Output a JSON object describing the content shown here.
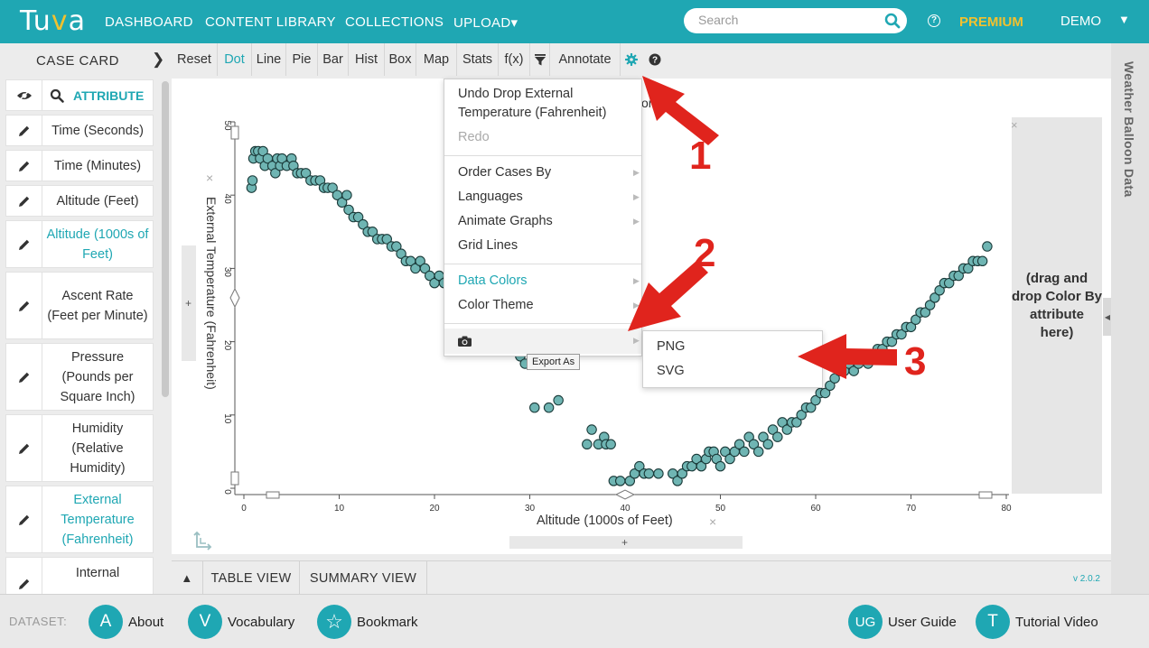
{
  "header": {
    "logo": "Tuva",
    "nav": [
      "DASHBOARD",
      "CONTENT LIBRARY",
      "COLLECTIONS",
      "UPLOAD▾"
    ],
    "search_placeholder": "Search",
    "help_icon": "?",
    "premium": "PREMIUM",
    "user": "DEMO",
    "user_caret": "▼"
  },
  "sidebar": {
    "title": "CASE CARD",
    "chevron": "›",
    "attribute_header": "ATTRIBUTE",
    "items": [
      {
        "label": "Time (Seconds)",
        "selected": false
      },
      {
        "label": "Time (Minutes)",
        "selected": false
      },
      {
        "label": "Altitude (Feet)",
        "selected": false
      },
      {
        "label": "Altitude (1000s of Feet)",
        "selected": true
      },
      {
        "label": "Ascent Rate (Feet per Minute)",
        "selected": false
      },
      {
        "label": "Pressure (Pounds per Square Inch)",
        "selected": false
      },
      {
        "label": "Humidity (Relative Humidity)",
        "selected": false
      },
      {
        "label": "External Temperature (Fahrenheit)",
        "selected": true
      },
      {
        "label": "Internal",
        "selected": false
      }
    ]
  },
  "toolbar": {
    "items": [
      "Reset",
      "Dot",
      "Line",
      "Pie",
      "Bar",
      "Hist",
      "Box",
      "Map",
      "Stats",
      "f(x)",
      "",
      "Annotate",
      "",
      ""
    ],
    "active": "Dot"
  },
  "graph": {
    "title_partial": "ors",
    "x_label": "Altitude (1000s of Feet)",
    "y_label": "External Temperature (Fahrenheit)",
    "color_drop": "(drag and drop Color By attribute here)",
    "close": "×",
    "plus": "+"
  },
  "chart_data": {
    "type": "scatter",
    "xlabel": "Altitude (1000s of Feet)",
    "ylabel": "External Temperature (Fahrenheit)",
    "xlim": [
      0,
      80
    ],
    "ylim": [
      0,
      50
    ],
    "xticks": [
      0,
      10,
      20,
      30,
      40,
      50,
      60,
      70,
      80
    ],
    "yticks": [
      0,
      10,
      20,
      30,
      40,
      50
    ],
    "point_color": "#6fb5b3",
    "points": [
      [
        0.8,
        41
      ],
      [
        0.9,
        42
      ],
      [
        1,
        45
      ],
      [
        1.2,
        46
      ],
      [
        1.5,
        46
      ],
      [
        1.7,
        45
      ],
      [
        2,
        46
      ],
      [
        2.2,
        44
      ],
      [
        2.5,
        45
      ],
      [
        3,
        44
      ],
      [
        3.3,
        43
      ],
      [
        3.5,
        45
      ],
      [
        3.8,
        44
      ],
      [
        4,
        45
      ],
      [
        4.5,
        44
      ],
      [
        5,
        45
      ],
      [
        5.2,
        44
      ],
      [
        5.6,
        43
      ],
      [
        6,
        43
      ],
      [
        6.5,
        43
      ],
      [
        7,
        42
      ],
      [
        7.5,
        42
      ],
      [
        8,
        42
      ],
      [
        8.4,
        41
      ],
      [
        8.8,
        41
      ],
      [
        9.3,
        41
      ],
      [
        9.8,
        40
      ],
      [
        10.3,
        39
      ],
      [
        10.8,
        40
      ],
      [
        11,
        38
      ],
      [
        11.5,
        37
      ],
      [
        12,
        37
      ],
      [
        12.5,
        36
      ],
      [
        13,
        35
      ],
      [
        13.5,
        35
      ],
      [
        14,
        34
      ],
      [
        14.5,
        34
      ],
      [
        15,
        34
      ],
      [
        15.5,
        33
      ],
      [
        16,
        33
      ],
      [
        16.5,
        32
      ],
      [
        17,
        31
      ],
      [
        17.5,
        31
      ],
      [
        18,
        30
      ],
      [
        18.5,
        31
      ],
      [
        19,
        30
      ],
      [
        19.5,
        29
      ],
      [
        20,
        28
      ],
      [
        20.5,
        29
      ],
      [
        21,
        28
      ],
      [
        29,
        18
      ],
      [
        29.5,
        17
      ],
      [
        30.5,
        11
      ],
      [
        32,
        11
      ],
      [
        33,
        12
      ],
      [
        36,
        6
      ],
      [
        36.5,
        8
      ],
      [
        37.2,
        6
      ],
      [
        37.8,
        7
      ],
      [
        38,
        6
      ],
      [
        38.5,
        6
      ],
      [
        38.8,
        1
      ],
      [
        39.5,
        1
      ],
      [
        40.5,
        1
      ],
      [
        41,
        2
      ],
      [
        41.5,
        3
      ],
      [
        42,
        2
      ],
      [
        42.5,
        2
      ],
      [
        43.5,
        2
      ],
      [
        45,
        2
      ],
      [
        45.5,
        1
      ],
      [
        46,
        2
      ],
      [
        46.5,
        3
      ],
      [
        47,
        3
      ],
      [
        47.5,
        4
      ],
      [
        48,
        3
      ],
      [
        48.5,
        4
      ],
      [
        48.8,
        5
      ],
      [
        49.3,
        5
      ],
      [
        49.6,
        4
      ],
      [
        50,
        3
      ],
      [
        50.5,
        5
      ],
      [
        51,
        4
      ],
      [
        51.5,
        5
      ],
      [
        52,
        6
      ],
      [
        52.5,
        5
      ],
      [
        53,
        7
      ],
      [
        53.5,
        6
      ],
      [
        54,
        5
      ],
      [
        54.5,
        7
      ],
      [
        55,
        6
      ],
      [
        55.5,
        8
      ],
      [
        56,
        7
      ],
      [
        56.5,
        9
      ],
      [
        57,
        8
      ],
      [
        57.5,
        9
      ],
      [
        58,
        9
      ],
      [
        58.5,
        10
      ],
      [
        59,
        11
      ],
      [
        59.5,
        11
      ],
      [
        60,
        12
      ],
      [
        60.5,
        13
      ],
      [
        61,
        13
      ],
      [
        61.5,
        14
      ],
      [
        62,
        15
      ],
      [
        62.5,
        16
      ],
      [
        63,
        16
      ],
      [
        63.5,
        17
      ],
      [
        64,
        16
      ],
      [
        64.5,
        17
      ],
      [
        65,
        18
      ],
      [
        65.5,
        17
      ],
      [
        66,
        18
      ],
      [
        66.5,
        19
      ],
      [
        67,
        19
      ],
      [
        67.5,
        20
      ],
      [
        68,
        20
      ],
      [
        68.5,
        21
      ],
      [
        69,
        21
      ],
      [
        69.5,
        22
      ],
      [
        70,
        22
      ],
      [
        70.5,
        23
      ],
      [
        71,
        24
      ],
      [
        71.5,
        24
      ],
      [
        72,
        25
      ],
      [
        72.5,
        26
      ],
      [
        73,
        27
      ],
      [
        73.5,
        28
      ],
      [
        74,
        28
      ],
      [
        74.5,
        29
      ],
      [
        75,
        29
      ],
      [
        75.5,
        30
      ],
      [
        76,
        30
      ],
      [
        76.5,
        31
      ],
      [
        77,
        31
      ],
      [
        77.5,
        31
      ],
      [
        78,
        33
      ]
    ]
  },
  "settings_menu": {
    "undo": "Undo Drop External Temperature (Fahrenheit)",
    "redo": "Redo",
    "order_cases": "Order Cases By",
    "languages": "Languages",
    "animate": "Animate Graphs",
    "grid": "Grid Lines",
    "data_colors": "Data Colors",
    "color_theme": "Color Theme",
    "export_tooltip": "Export As",
    "export_options": [
      "PNG",
      "SVG"
    ]
  },
  "annotations": [
    "1",
    "2",
    "3"
  ],
  "right_panel": {
    "title": "Weather Balloon Data"
  },
  "view_tabs": {
    "collapse": "▲",
    "table": "TABLE VIEW",
    "summary": "SUMMARY VIEW",
    "version": "v 2.0.2"
  },
  "footer": {
    "dataset_label": "DATASET:",
    "buttons": [
      {
        "letter": "A",
        "label": "About"
      },
      {
        "letter": "V",
        "label": "Vocabulary"
      },
      {
        "letter": "☆",
        "label": "Bookmark"
      },
      {
        "letter": "UG",
        "label": "User Guide"
      },
      {
        "letter": "T",
        "label": "Tutorial Video"
      }
    ]
  },
  "colors": {
    "brand": "#1fa7b3",
    "premium": "#f2c12e",
    "annotation": "#e0241d"
  }
}
